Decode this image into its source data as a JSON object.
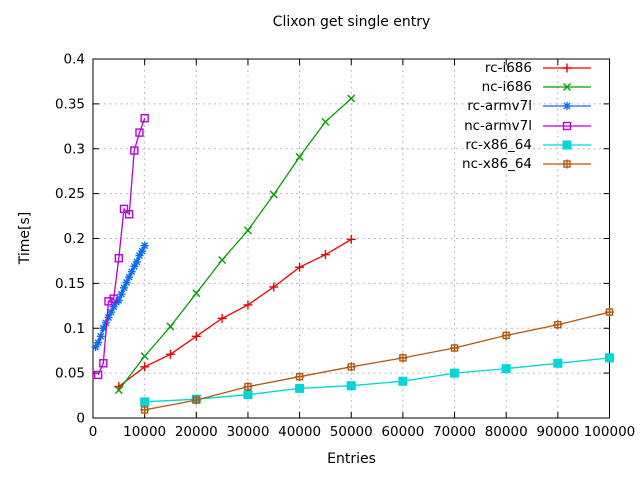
{
  "window": {
    "background": "#ffffff"
  },
  "chart_data": {
    "type": "line",
    "title": "Clixon get single entry",
    "xlabel": "Entries",
    "ylabel": "Time[s]",
    "xlim": [
      0,
      100000
    ],
    "ylim": [
      0,
      0.4
    ],
    "grid": true,
    "grid_style": "dotted-gray",
    "legend_position": "top-right-inside",
    "xticks": {
      "values": [
        0,
        10000,
        20000,
        30000,
        40000,
        50000,
        60000,
        70000,
        80000,
        90000,
        100000
      ],
      "labels": [
        "0",
        "10000",
        "20000",
        "30000",
        "40000",
        "50000",
        "60000",
        "70000",
        "80000",
        "90000",
        "100000"
      ]
    },
    "yticks": {
      "values": [
        0,
        0.05,
        0.1,
        0.15,
        0.2,
        0.25,
        0.3,
        0.35,
        0.4
      ],
      "labels": [
        "0",
        "0.05",
        "0.1",
        "0.15",
        "0.2",
        "0.25",
        "0.3",
        "0.35",
        "0.4"
      ]
    },
    "series": [
      {
        "name": "rc-i686",
        "color": "#ee0000",
        "marker": "plus",
        "points": [
          [
            5000,
            0.035
          ],
          [
            10000,
            0.057
          ],
          [
            15000,
            0.071
          ],
          [
            20000,
            0.091
          ],
          [
            25000,
            0.111
          ],
          [
            30000,
            0.126
          ],
          [
            35000,
            0.146
          ],
          [
            40000,
            0.168
          ],
          [
            45000,
            0.182
          ],
          [
            50000,
            0.199
          ]
        ]
      },
      {
        "name": "nc-i686",
        "color": "#00a000",
        "marker": "cross",
        "points": [
          [
            5000,
            0.031
          ],
          [
            10000,
            0.069
          ],
          [
            15000,
            0.102
          ],
          [
            20000,
            0.139
          ],
          [
            25000,
            0.176
          ],
          [
            30000,
            0.209
          ],
          [
            35000,
            0.249
          ],
          [
            40000,
            0.291
          ],
          [
            45000,
            0.33
          ],
          [
            50000,
            0.356
          ]
        ]
      },
      {
        "name": "rc-armv7l",
        "color": "#0c6cf0",
        "marker": "star",
        "points": [
          [
            500,
            0.079
          ],
          [
            1000,
            0.084
          ],
          [
            1500,
            0.091
          ],
          [
            2000,
            0.1
          ],
          [
            2500,
            0.106
          ],
          [
            3000,
            0.112
          ],
          [
            3500,
            0.118
          ],
          [
            4000,
            0.124
          ],
          [
            4500,
            0.129
          ],
          [
            5000,
            0.131
          ],
          [
            5500,
            0.138
          ],
          [
            6000,
            0.145
          ],
          [
            6500,
            0.151
          ],
          [
            7000,
            0.157
          ],
          [
            7500,
            0.163
          ],
          [
            8000,
            0.169
          ],
          [
            8500,
            0.174
          ],
          [
            9000,
            0.181
          ],
          [
            9500,
            0.186
          ],
          [
            10000,
            0.192
          ]
        ]
      },
      {
        "name": "nc-armv7l",
        "color": "#b800d8",
        "marker": "square-open",
        "points": [
          [
            1000,
            0.048
          ],
          [
            2000,
            0.061
          ],
          [
            3000,
            0.13
          ],
          [
            4000,
            0.133
          ],
          [
            5000,
            0.178
          ],
          [
            6000,
            0.233
          ],
          [
            7000,
            0.227
          ],
          [
            8000,
            0.298
          ],
          [
            9000,
            0.318
          ],
          [
            10000,
            0.334
          ]
        ]
      },
      {
        "name": "rc-x86_64",
        "color": "#00d5d5",
        "marker": "square-filled",
        "points": [
          [
            10000,
            0.018
          ],
          [
            20000,
            0.021
          ],
          [
            30000,
            0.026
          ],
          [
            40000,
            0.033
          ],
          [
            50000,
            0.036
          ],
          [
            60000,
            0.041
          ],
          [
            70000,
            0.05
          ],
          [
            80000,
            0.055
          ],
          [
            90000,
            0.061
          ],
          [
            100000,
            0.067
          ]
        ]
      },
      {
        "name": "nc-x86_64",
        "color": "#b25a10",
        "marker": "square-plus",
        "points": [
          [
            10000,
            0.009
          ],
          [
            20000,
            0.02
          ],
          [
            30000,
            0.035
          ],
          [
            40000,
            0.046
          ],
          [
            50000,
            0.057
          ],
          [
            60000,
            0.067
          ],
          [
            70000,
            0.078
          ],
          [
            80000,
            0.092
          ],
          [
            90000,
            0.104
          ],
          [
            100000,
            0.118
          ]
        ]
      }
    ],
    "colors": {
      "axis": "#000000",
      "grid": "#b8b8b8",
      "background": "#ffffff",
      "text": "#000000"
    }
  }
}
